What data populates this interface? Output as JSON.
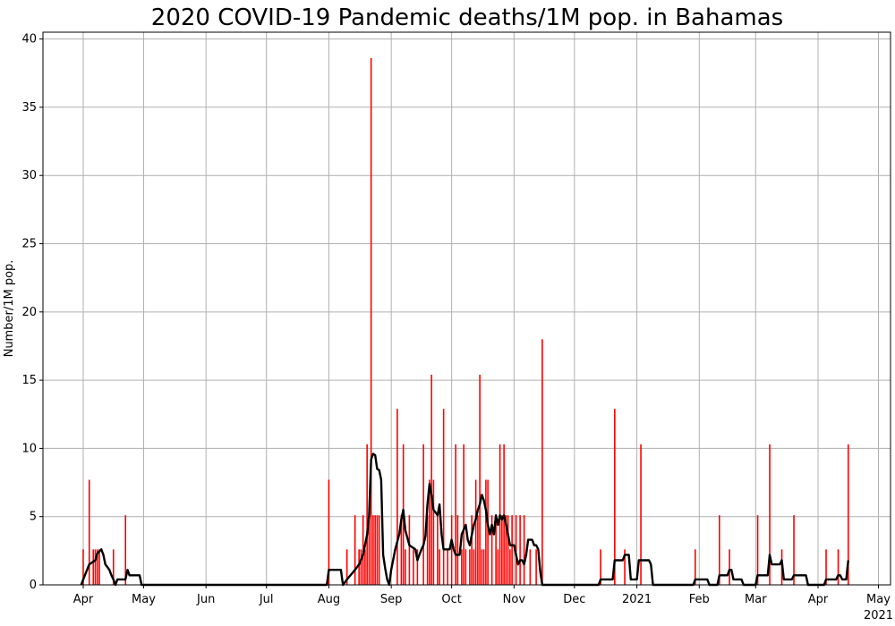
{
  "chart_data": {
    "type": "bar",
    "title": "2020 COVID-19 Pandemic deaths/1M pop. in Bahamas",
    "ylabel": "Number/1M pop.",
    "xlabel": "",
    "ylim": [
      0,
      40.5
    ],
    "grid": true,
    "x_range": [
      "2020-03-12",
      "2021-05-07"
    ],
    "y_ticks": [
      0,
      5,
      10,
      15,
      20,
      25,
      30,
      35,
      40
    ],
    "x_ticks": [
      {
        "date": "2020-04-01",
        "label": "Apr"
      },
      {
        "date": "2020-05-01",
        "label": "May"
      },
      {
        "date": "2020-06-01",
        "label": "Jun"
      },
      {
        "date": "2020-07-01",
        "label": "Jul"
      },
      {
        "date": "2020-08-01",
        "label": "Aug"
      },
      {
        "date": "2020-09-01",
        "label": "Sep"
      },
      {
        "date": "2020-10-01",
        "label": "Oct"
      },
      {
        "date": "2020-11-01",
        "label": "Nov"
      },
      {
        "date": "2020-12-01",
        "label": "Dec"
      },
      {
        "date": "2021-01-01",
        "label": "2021"
      },
      {
        "date": "2021-02-01",
        "label": "Feb"
      },
      {
        "date": "2021-03-01",
        "label": "Mar"
      },
      {
        "date": "2021-04-01",
        "label": "Apr"
      },
      {
        "date": "2021-05-01",
        "label": "May",
        "sublabel": "2021"
      }
    ],
    "series": [
      {
        "kind": "bar",
        "color": "#ff0000",
        "points": [
          [
            "2020-04-01",
            2.6
          ],
          [
            "2020-04-04",
            7.7
          ],
          [
            "2020-04-06",
            2.6
          ],
          [
            "2020-04-07",
            2.6
          ],
          [
            "2020-04-08",
            2.6
          ],
          [
            "2020-04-09",
            2.6
          ],
          [
            "2020-04-16",
            2.6
          ],
          [
            "2020-04-22",
            5.1
          ],
          [
            "2020-08-01",
            7.7
          ],
          [
            "2020-08-10",
            2.6
          ],
          [
            "2020-08-14",
            5.1
          ],
          [
            "2020-08-16",
            2.6
          ],
          [
            "2020-08-17",
            2.6
          ],
          [
            "2020-08-18",
            5.1
          ],
          [
            "2020-08-19",
            2.6
          ],
          [
            "2020-08-20",
            10.3
          ],
          [
            "2020-08-21",
            5.1
          ],
          [
            "2020-08-22",
            38.6
          ],
          [
            "2020-08-23",
            5.1
          ],
          [
            "2020-08-24",
            5.1
          ],
          [
            "2020-08-25",
            5.1
          ],
          [
            "2020-08-26",
            5.1
          ],
          [
            "2020-09-04",
            12.9
          ],
          [
            "2020-09-06",
            5.1
          ],
          [
            "2020-09-07",
            10.3
          ],
          [
            "2020-09-08",
            2.6
          ],
          [
            "2020-09-10",
            5.1
          ],
          [
            "2020-09-12",
            2.6
          ],
          [
            "2020-09-14",
            2.6
          ],
          [
            "2020-09-17",
            10.3
          ],
          [
            "2020-09-19",
            5.1
          ],
          [
            "2020-09-20",
            7.7
          ],
          [
            "2020-09-21",
            15.4
          ],
          [
            "2020-09-22",
            7.7
          ],
          [
            "2020-09-24",
            5.1
          ],
          [
            "2020-09-25",
            2.6
          ],
          [
            "2020-09-27",
            12.9
          ],
          [
            "2020-09-29",
            2.6
          ],
          [
            "2020-10-01",
            5.1
          ],
          [
            "2020-10-03",
            10.3
          ],
          [
            "2020-10-04",
            5.1
          ],
          [
            "2020-10-06",
            2.6
          ],
          [
            "2020-10-07",
            10.3
          ],
          [
            "2020-10-08",
            2.6
          ],
          [
            "2020-10-10",
            2.6
          ],
          [
            "2020-10-11",
            5.1
          ],
          [
            "2020-10-12",
            2.6
          ],
          [
            "2020-10-13",
            7.7
          ],
          [
            "2020-10-14",
            5.1
          ],
          [
            "2020-10-15",
            15.4
          ],
          [
            "2020-10-16",
            2.6
          ],
          [
            "2020-10-17",
            2.6
          ],
          [
            "2020-10-18",
            7.7
          ],
          [
            "2020-10-19",
            7.7
          ],
          [
            "2020-10-21",
            5.1
          ],
          [
            "2020-10-23",
            5.1
          ],
          [
            "2020-10-24",
            2.6
          ],
          [
            "2020-10-25",
            10.3
          ],
          [
            "2020-10-26",
            5.1
          ],
          [
            "2020-10-27",
            10.3
          ],
          [
            "2020-10-28",
            5.1
          ],
          [
            "2020-10-29",
            5.1
          ],
          [
            "2020-10-30",
            2.6
          ],
          [
            "2020-10-31",
            5.1
          ],
          [
            "2020-11-02",
            5.1
          ],
          [
            "2020-11-04",
            5.1
          ],
          [
            "2020-11-06",
            5.1
          ],
          [
            "2020-11-09",
            2.6
          ],
          [
            "2020-11-12",
            2.6
          ],
          [
            "2020-11-15",
            18.0
          ],
          [
            "2020-12-14",
            2.6
          ],
          [
            "2020-12-21",
            12.9
          ],
          [
            "2020-12-26",
            2.6
          ],
          [
            "2021-01-03",
            10.3
          ],
          [
            "2021-01-30",
            2.6
          ],
          [
            "2021-02-11",
            5.1
          ],
          [
            "2021-02-16",
            2.6
          ],
          [
            "2021-03-02",
            5.1
          ],
          [
            "2021-03-08",
            10.3
          ],
          [
            "2021-03-14",
            2.6
          ],
          [
            "2021-03-20",
            5.1
          ],
          [
            "2021-04-05",
            2.6
          ],
          [
            "2021-04-11",
            2.6
          ],
          [
            "2021-04-16",
            10.3
          ]
        ]
      },
      {
        "kind": "line",
        "color": "#000000",
        "points": [
          [
            "2020-03-31",
            0
          ],
          [
            "2020-04-01",
            0.4
          ],
          [
            "2020-04-04",
            1.5
          ],
          [
            "2020-04-07",
            1.8
          ],
          [
            "2020-04-08",
            2.3
          ],
          [
            "2020-04-10",
            2.6
          ],
          [
            "2020-04-11",
            2.2
          ],
          [
            "2020-04-12",
            1.5
          ],
          [
            "2020-04-14",
            1.1
          ],
          [
            "2020-04-15",
            0.7
          ],
          [
            "2020-04-16",
            0.4
          ],
          [
            "2020-04-17",
            0
          ],
          [
            "2020-04-18",
            0.4
          ],
          [
            "2020-04-22",
            0.4
          ],
          [
            "2020-04-23",
            1.1
          ],
          [
            "2020-04-24",
            0.7
          ],
          [
            "2020-04-29",
            0.7
          ],
          [
            "2020-04-30",
            0
          ],
          [
            "2020-07-31",
            0
          ],
          [
            "2020-08-01",
            1.1
          ],
          [
            "2020-08-07",
            1.1
          ],
          [
            "2020-08-08",
            0
          ],
          [
            "2020-08-10",
            0.4
          ],
          [
            "2020-08-14",
            1.1
          ],
          [
            "2020-08-16",
            1.5
          ],
          [
            "2020-08-18",
            2.2
          ],
          [
            "2020-08-20",
            3.7
          ],
          [
            "2020-08-21",
            5.1
          ],
          [
            "2020-08-22",
            9.2
          ],
          [
            "2020-08-23",
            9.6
          ],
          [
            "2020-08-24",
            9.5
          ],
          [
            "2020-08-25",
            8.5
          ],
          [
            "2020-08-26",
            8.4
          ],
          [
            "2020-08-27",
            7.7
          ],
          [
            "2020-08-28",
            2.2
          ],
          [
            "2020-08-29",
            1.2
          ],
          [
            "2020-08-30",
            0.4
          ],
          [
            "2020-08-31",
            0
          ],
          [
            "2020-09-01",
            1.1
          ],
          [
            "2020-09-03",
            2.6
          ],
          [
            "2020-09-05",
            3.7
          ],
          [
            "2020-09-06",
            4.8
          ],
          [
            "2020-09-07",
            5.5
          ],
          [
            "2020-09-08",
            4.0
          ],
          [
            "2020-09-10",
            2.9
          ],
          [
            "2020-09-13",
            2.6
          ],
          [
            "2020-09-14",
            1.8
          ],
          [
            "2020-09-15",
            2.2
          ],
          [
            "2020-09-16",
            2.6
          ],
          [
            "2020-09-17",
            2.9
          ],
          [
            "2020-09-18",
            3.6
          ],
          [
            "2020-09-19",
            5.9
          ],
          [
            "2020-09-20",
            7.4
          ],
          [
            "2020-09-21",
            6.6
          ],
          [
            "2020-09-22",
            5.5
          ],
          [
            "2020-09-24",
            5.1
          ],
          [
            "2020-09-25",
            5.9
          ],
          [
            "2020-09-26",
            3.7
          ],
          [
            "2020-09-27",
            2.6
          ],
          [
            "2020-09-30",
            2.6
          ],
          [
            "2020-10-01",
            3.3
          ],
          [
            "2020-10-02",
            2.6
          ],
          [
            "2020-10-03",
            2.2
          ],
          [
            "2020-10-05",
            2.2
          ],
          [
            "2020-10-06",
            3.7
          ],
          [
            "2020-10-08",
            4.4
          ],
          [
            "2020-10-09",
            3.3
          ],
          [
            "2020-10-10",
            2.9
          ],
          [
            "2020-10-12",
            4.4
          ],
          [
            "2020-10-13",
            4.8
          ],
          [
            "2020-10-14",
            5.5
          ],
          [
            "2020-10-15",
            5.9
          ],
          [
            "2020-10-16",
            6.6
          ],
          [
            "2020-10-17",
            6.2
          ],
          [
            "2020-10-18",
            5.5
          ],
          [
            "2020-10-19",
            4.4
          ],
          [
            "2020-10-20",
            3.7
          ],
          [
            "2020-10-21",
            4.4
          ],
          [
            "2020-10-22",
            3.7
          ],
          [
            "2020-10-23",
            5.1
          ],
          [
            "2020-10-24",
            4.4
          ],
          [
            "2020-10-25",
            5.1
          ],
          [
            "2020-10-26",
            4.8
          ],
          [
            "2020-10-27",
            5.1
          ],
          [
            "2020-10-28",
            4.4
          ],
          [
            "2020-10-29",
            3.7
          ],
          [
            "2020-10-30",
            2.9
          ],
          [
            "2020-11-01",
            2.9
          ],
          [
            "2020-11-02",
            2.2
          ],
          [
            "2020-11-03",
            1.5
          ],
          [
            "2020-11-04",
            1.8
          ],
          [
            "2020-11-05",
            1.8
          ],
          [
            "2020-11-06",
            1.5
          ],
          [
            "2020-11-07",
            2.2
          ],
          [
            "2020-11-08",
            3.3
          ],
          [
            "2020-11-10",
            3.3
          ],
          [
            "2020-11-11",
            2.9
          ],
          [
            "2020-11-12",
            2.9
          ],
          [
            "2020-11-13",
            2.6
          ],
          [
            "2020-11-14",
            1.0
          ],
          [
            "2020-11-15",
            0
          ],
          [
            "2020-12-13",
            0
          ],
          [
            "2020-12-14",
            0.4
          ],
          [
            "2020-12-20",
            0.4
          ],
          [
            "2020-12-21",
            1.8
          ],
          [
            "2020-12-25",
            1.8
          ],
          [
            "2020-12-26",
            2.2
          ],
          [
            "2020-12-28",
            2.2
          ],
          [
            "2020-12-29",
            0.4
          ],
          [
            "2021-01-01",
            0.4
          ],
          [
            "2021-01-02",
            1.8
          ],
          [
            "2021-01-07",
            1.8
          ],
          [
            "2021-01-08",
            1.5
          ],
          [
            "2021-01-09",
            0
          ],
          [
            "2021-01-29",
            0
          ],
          [
            "2021-01-30",
            0.4
          ],
          [
            "2021-02-05",
            0.4
          ],
          [
            "2021-02-06",
            0
          ],
          [
            "2021-02-10",
            0
          ],
          [
            "2021-02-11",
            0.7
          ],
          [
            "2021-02-15",
            0.7
          ],
          [
            "2021-02-16",
            1.1
          ],
          [
            "2021-02-17",
            1.1
          ],
          [
            "2021-02-18",
            0.4
          ],
          [
            "2021-02-22",
            0.4
          ],
          [
            "2021-02-23",
            0
          ],
          [
            "2021-03-01",
            0
          ],
          [
            "2021-03-02",
            0.7
          ],
          [
            "2021-03-07",
            0.7
          ],
          [
            "2021-03-08",
            2.2
          ],
          [
            "2021-03-09",
            1.5
          ],
          [
            "2021-03-13",
            1.5
          ],
          [
            "2021-03-14",
            1.8
          ],
          [
            "2021-03-15",
            0.4
          ],
          [
            "2021-03-19",
            0.4
          ],
          [
            "2021-03-20",
            0.7
          ],
          [
            "2021-03-26",
            0.7
          ],
          [
            "2021-03-27",
            0
          ],
          [
            "2021-04-04",
            0
          ],
          [
            "2021-04-05",
            0.4
          ],
          [
            "2021-04-10",
            0.4
          ],
          [
            "2021-04-11",
            0.7
          ],
          [
            "2021-04-12",
            0.7
          ],
          [
            "2021-04-13",
            0.4
          ],
          [
            "2021-04-15",
            0.4
          ],
          [
            "2021-04-16",
            1.8
          ]
        ]
      }
    ]
  }
}
